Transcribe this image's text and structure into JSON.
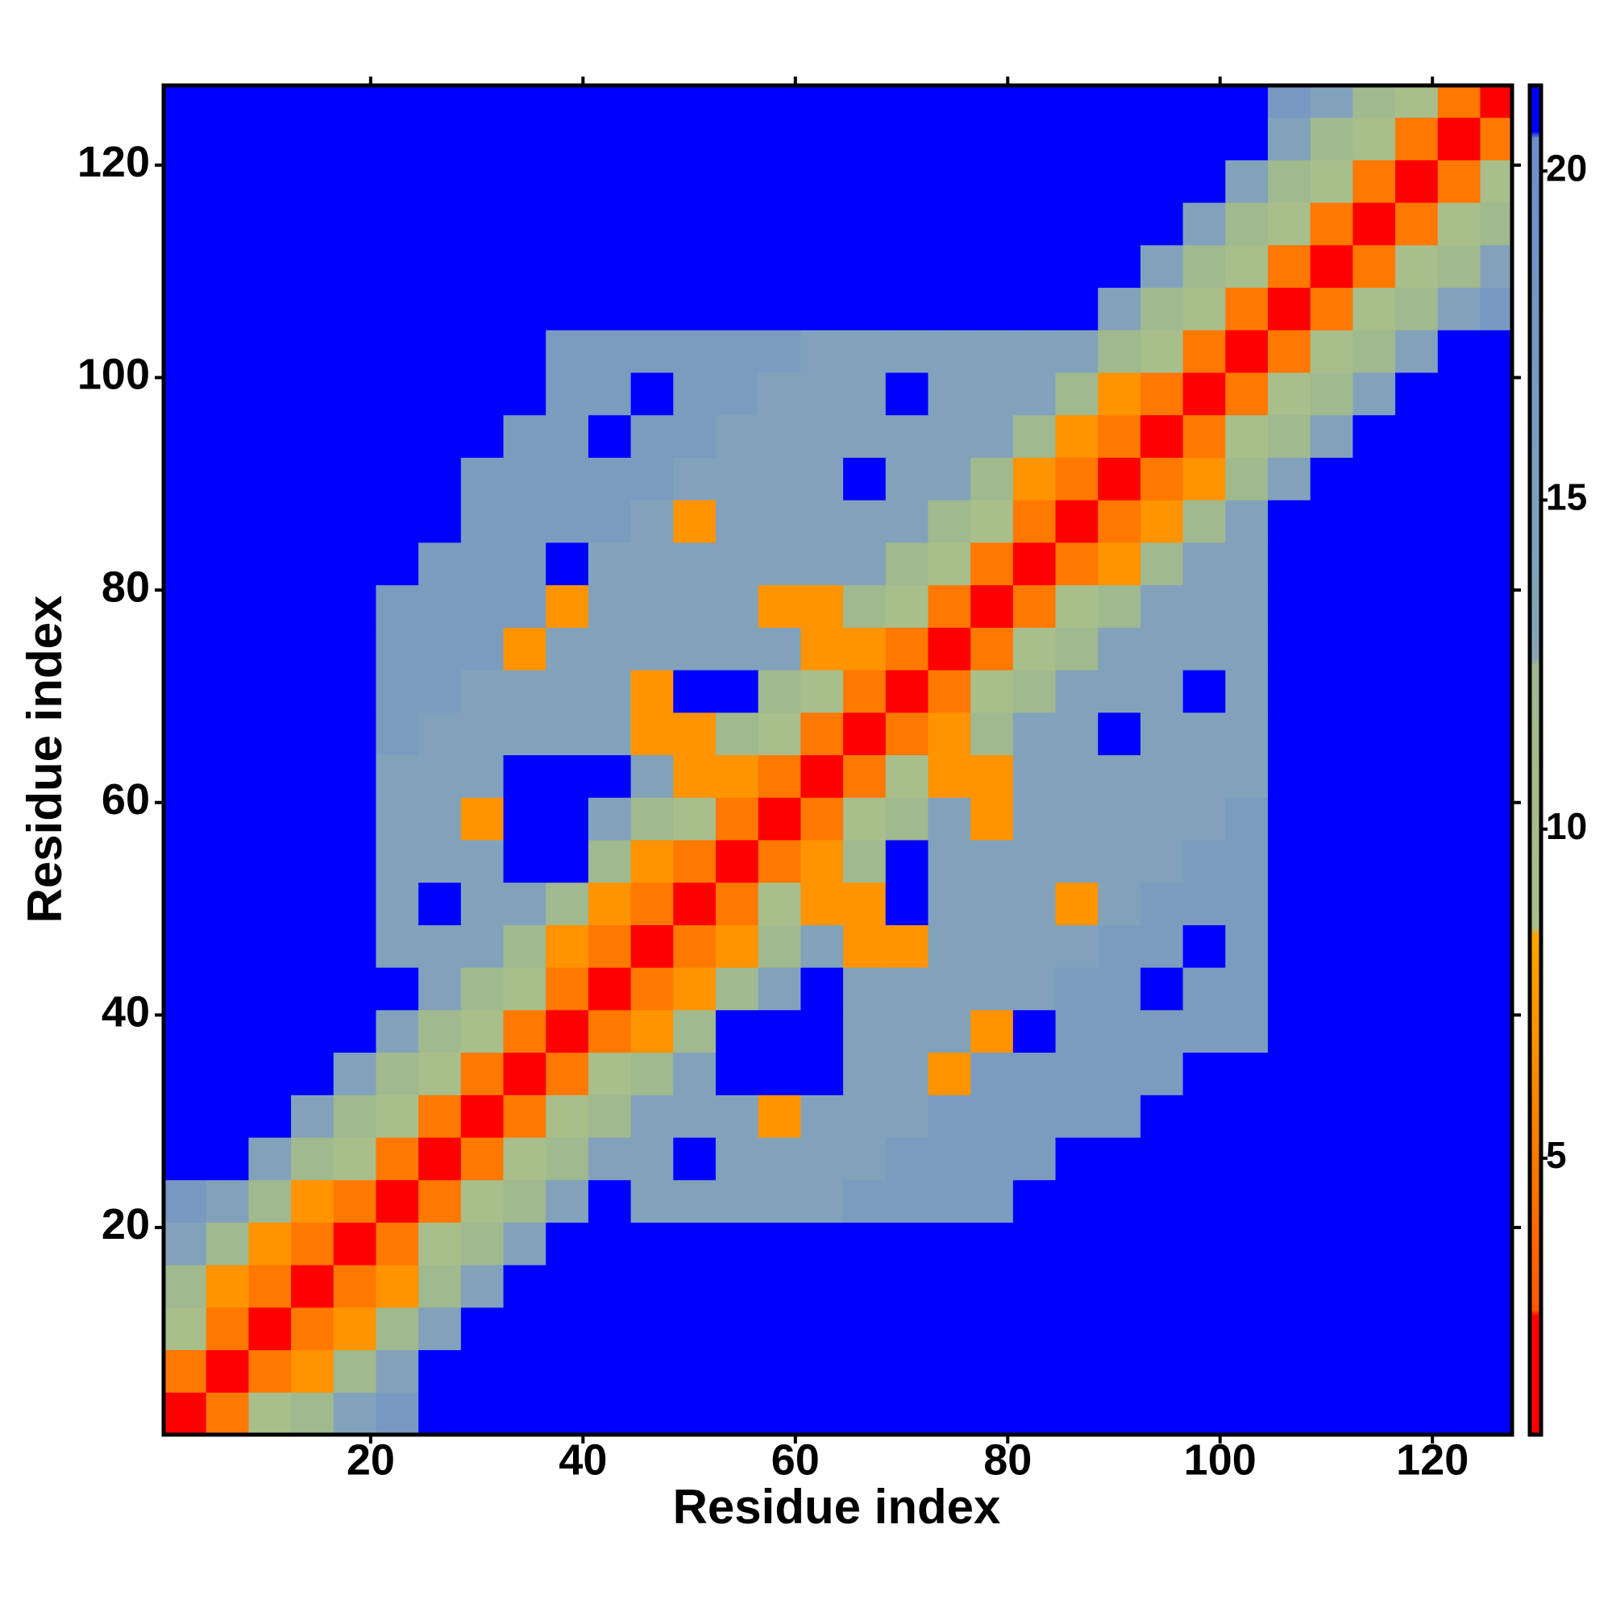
{
  "chart_data": {
    "type": "heatmap",
    "x_label": "Residue index",
    "y_label": "Residue index",
    "xlim": [
      0.5,
      127.5
    ],
    "ylim": [
      0.5,
      127.5
    ],
    "xticks": [
      20,
      40,
      60,
      80,
      100,
      120
    ],
    "yticks": [
      20,
      40,
      60,
      80,
      100,
      120
    ],
    "xbins": [
      0.5,
      4.5,
      8.5,
      12.5,
      16.5,
      20.5,
      24.5,
      28.5,
      32.5,
      36.5,
      40.5,
      44.5,
      48.5,
      52.5,
      56.5,
      60.5,
      64.5,
      68.5,
      72.5,
      76.5,
      80.5,
      84.5,
      88.5,
      92.5,
      96.5,
      100.5,
      104.5,
      108.5,
      112.5,
      116.5,
      120.5,
      124.5,
      127.5
    ],
    "ybins": [
      0.5,
      4.5,
      8.5,
      12.5,
      16.5,
      20.5,
      24.5,
      28.5,
      32.5,
      36.5,
      40.5,
      44.5,
      48.5,
      52.5,
      56.5,
      60.5,
      64.5,
      68.5,
      72.5,
      76.5,
      80.5,
      84.5,
      88.5,
      92.5,
      96.5,
      100.5,
      104.5,
      108.5,
      112.5,
      116.5,
      120.5,
      124.5,
      127.5
    ],
    "colorscale": [
      [
        0.8,
        "#ff0000"
      ],
      [
        2.6,
        "#ff0000"
      ],
      [
        2.7,
        "#ff5a00"
      ],
      [
        8.4,
        "#ffa500"
      ],
      [
        8.5,
        "#a9bf8a"
      ],
      [
        12.5,
        "#9fb88f"
      ],
      [
        12.6,
        "#86a6b8"
      ],
      [
        20.5,
        "#6d8ec9"
      ],
      [
        20.6,
        "#0000ff"
      ],
      [
        21.3,
        "#0000ff"
      ]
    ],
    "colorbar": {
      "lim": [
        0.8,
        21.3
      ],
      "ticks": [
        5,
        10,
        15,
        20
      ]
    },
    "z": [
      [
        1.5,
        5,
        9,
        12,
        14,
        17,
        25,
        25,
        25,
        25,
        25,
        25,
        25,
        25,
        25,
        25,
        25,
        25,
        25,
        25,
        25,
        25,
        25,
        25,
        25,
        25,
        25,
        25,
        25,
        25,
        25,
        25
      ],
      [
        5,
        1.5,
        5,
        7,
        12,
        14,
        25,
        25,
        25,
        25,
        25,
        25,
        25,
        25,
        25,
        25,
        25,
        25,
        25,
        25,
        25,
        25,
        25,
        25,
        25,
        25,
        25,
        25,
        25,
        25,
        25,
        25
      ],
      [
        9,
        5,
        1.5,
        5,
        7,
        12,
        14,
        25,
        25,
        25,
        25,
        25,
        25,
        25,
        25,
        25,
        25,
        25,
        25,
        25,
        25,
        25,
        25,
        25,
        25,
        25,
        25,
        25,
        25,
        25,
        25,
        25
      ],
      [
        12,
        7,
        5,
        1.5,
        5,
        7,
        12,
        14,
        25,
        25,
        25,
        25,
        25,
        25,
        25,
        25,
        25,
        25,
        25,
        25,
        25,
        25,
        25,
        25,
        25,
        25,
        25,
        25,
        25,
        25,
        25,
        25
      ],
      [
        14,
        12,
        7,
        5,
        1.5,
        5,
        9,
        12,
        14,
        25,
        25,
        25,
        25,
        25,
        25,
        25,
        25,
        25,
        25,
        25,
        25,
        25,
        25,
        25,
        25,
        25,
        25,
        25,
        25,
        25,
        25,
        25
      ],
      [
        17,
        14,
        12,
        7,
        5,
        1.5,
        5,
        9,
        12,
        14,
        25,
        14,
        14,
        14,
        14,
        14,
        16,
        16,
        16,
        16,
        25,
        25,
        25,
        25,
        25,
        25,
        25,
        25,
        25,
        25,
        25,
        25
      ],
      [
        25,
        25,
        14,
        12,
        9,
        5,
        1.5,
        5,
        9,
        12,
        14,
        14,
        25,
        14,
        14,
        14,
        14,
        16,
        16,
        16,
        16,
        25,
        25,
        25,
        25,
        25,
        25,
        25,
        25,
        25,
        25,
        25
      ],
      [
        25,
        25,
        25,
        14,
        12,
        9,
        5,
        1.5,
        5,
        9,
        12,
        14,
        14,
        14,
        7,
        14,
        14,
        14,
        16,
        16,
        16,
        16,
        16,
        25,
        25,
        25,
        25,
        25,
        25,
        25,
        25,
        25
      ],
      [
        25,
        25,
        25,
        25,
        14,
        12,
        9,
        5,
        1.5,
        5,
        9,
        12,
        14,
        25,
        25,
        25,
        14,
        14,
        7,
        16,
        16,
        16,
        16,
        16,
        25,
        25,
        25,
        25,
        25,
        25,
        25,
        25
      ],
      [
        25,
        25,
        25,
        25,
        25,
        14,
        12,
        9,
        5,
        1.5,
        5,
        7,
        12,
        25,
        25,
        25,
        14,
        14,
        14,
        7,
        25,
        16,
        16,
        16,
        16,
        16,
        25,
        25,
        25,
        25,
        25,
        25
      ],
      [
        25,
        25,
        25,
        25,
        25,
        25,
        14,
        12,
        9,
        5,
        1.5,
        5,
        7,
        12,
        14,
        25,
        14,
        14,
        14,
        14,
        14,
        16,
        16,
        25,
        16,
        16,
        25,
        25,
        25,
        25,
        25,
        25
      ],
      [
        25,
        25,
        25,
        25,
        25,
        14,
        14,
        14,
        12,
        7,
        5,
        1.5,
        5,
        7,
        12,
        14,
        7,
        7,
        14,
        14,
        14,
        14,
        16,
        16,
        25,
        16,
        25,
        25,
        25,
        25,
        25,
        25
      ],
      [
        25,
        25,
        25,
        25,
        25,
        14,
        25,
        14,
        14,
        12,
        7,
        5,
        1.5,
        5,
        9,
        7,
        7,
        25,
        14,
        14,
        14,
        7,
        14,
        16,
        16,
        16,
        25,
        25,
        25,
        25,
        25,
        25
      ],
      [
        25,
        25,
        25,
        25,
        25,
        14,
        14,
        14,
        25,
        25,
        12,
        7,
        5,
        1.5,
        5,
        7,
        12,
        25,
        14,
        14,
        14,
        14,
        14,
        14,
        16,
        16,
        25,
        25,
        25,
        25,
        25,
        25
      ],
      [
        25,
        25,
        25,
        25,
        25,
        14,
        14,
        7,
        25,
        25,
        14,
        12,
        9,
        5,
        1.5,
        5,
        9,
        12,
        14,
        7,
        14,
        14,
        14,
        14,
        14,
        16,
        25,
        25,
        25,
        25,
        25,
        25
      ],
      [
        25,
        25,
        25,
        25,
        25,
        14,
        14,
        14,
        25,
        25,
        25,
        14,
        7,
        7,
        5,
        1.5,
        5,
        9,
        7,
        7,
        14,
        14,
        14,
        14,
        14,
        14,
        25,
        25,
        25,
        25,
        25,
        25
      ],
      [
        25,
        25,
        25,
        25,
        25,
        16,
        14,
        14,
        14,
        14,
        14,
        7,
        7,
        12,
        9,
        5,
        1.5,
        5,
        7,
        12,
        14,
        14,
        25,
        14,
        14,
        14,
        25,
        25,
        25,
        25,
        25,
        25
      ],
      [
        25,
        25,
        25,
        25,
        25,
        16,
        16,
        14,
        14,
        14,
        14,
        7,
        25,
        25,
        12,
        9,
        5,
        1.5,
        5,
        9,
        12,
        14,
        14,
        14,
        25,
        14,
        25,
        25,
        25,
        25,
        25,
        25
      ],
      [
        25,
        25,
        25,
        25,
        25,
        16,
        16,
        16,
        7,
        14,
        14,
        14,
        14,
        14,
        14,
        7,
        7,
        5,
        1.5,
        5,
        9,
        12,
        14,
        14,
        14,
        14,
        25,
        25,
        25,
        25,
        25,
        25
      ],
      [
        25,
        25,
        25,
        25,
        25,
        16,
        16,
        16,
        16,
        7,
        14,
        14,
        14,
        14,
        7,
        7,
        12,
        9,
        5,
        1.5,
        5,
        9,
        12,
        14,
        14,
        14,
        25,
        25,
        25,
        25,
        25,
        25
      ],
      [
        25,
        25,
        25,
        25,
        25,
        25,
        16,
        16,
        16,
        25,
        14,
        14,
        14,
        14,
        14,
        14,
        14,
        12,
        9,
        5,
        1.5,
        5,
        7,
        12,
        14,
        14,
        25,
        25,
        25,
        25,
        25,
        25
      ],
      [
        25,
        25,
        25,
        25,
        25,
        25,
        25,
        16,
        16,
        16,
        16,
        14,
        7,
        14,
        14,
        14,
        14,
        14,
        12,
        9,
        5,
        1.5,
        5,
        7,
        12,
        14,
        25,
        25,
        25,
        25,
        25,
        25
      ],
      [
        25,
        25,
        25,
        25,
        25,
        25,
        25,
        16,
        16,
        16,
        16,
        16,
        14,
        14,
        14,
        14,
        25,
        14,
        14,
        12,
        7,
        5,
        1.5,
        5,
        7,
        12,
        14,
        25,
        25,
        25,
        25,
        25
      ],
      [
        25,
        25,
        25,
        25,
        25,
        25,
        25,
        25,
        16,
        16,
        25,
        16,
        16,
        14,
        14,
        14,
        14,
        14,
        14,
        14,
        12,
        7,
        5,
        1.5,
        5,
        9,
        12,
        14,
        25,
        25,
        25,
        25
      ],
      [
        25,
        25,
        25,
        25,
        25,
        25,
        25,
        25,
        25,
        16,
        16,
        25,
        16,
        16,
        14,
        14,
        14,
        25,
        14,
        14,
        14,
        12,
        7,
        5,
        1.5,
        5,
        9,
        12,
        14,
        25,
        25,
        25
      ],
      [
        25,
        25,
        25,
        25,
        25,
        25,
        25,
        25,
        25,
        16,
        16,
        16,
        16,
        16,
        16,
        14,
        14,
        14,
        14,
        14,
        14,
        14,
        12,
        9,
        5,
        1.5,
        5,
        9,
        12,
        14,
        25,
        25
      ],
      [
        25,
        25,
        25,
        25,
        25,
        25,
        25,
        25,
        25,
        25,
        25,
        25,
        25,
        25,
        25,
        25,
        25,
        25,
        25,
        25,
        25,
        25,
        14,
        12,
        9,
        5,
        1.5,
        5,
        9,
        12,
        14,
        17
      ],
      [
        25,
        25,
        25,
        25,
        25,
        25,
        25,
        25,
        25,
        25,
        25,
        25,
        25,
        25,
        25,
        25,
        25,
        25,
        25,
        25,
        25,
        25,
        25,
        14,
        12,
        9,
        5,
        1.5,
        5,
        9,
        12,
        14
      ],
      [
        25,
        25,
        25,
        25,
        25,
        25,
        25,
        25,
        25,
        25,
        25,
        25,
        25,
        25,
        25,
        25,
        25,
        25,
        25,
        25,
        25,
        25,
        25,
        25,
        14,
        12,
        9,
        5,
        1.5,
        5,
        9,
        12
      ],
      [
        25,
        25,
        25,
        25,
        25,
        25,
        25,
        25,
        25,
        25,
        25,
        25,
        25,
        25,
        25,
        25,
        25,
        25,
        25,
        25,
        25,
        25,
        25,
        25,
        25,
        14,
        12,
        9,
        5,
        1.5,
        5,
        9
      ],
      [
        25,
        25,
        25,
        25,
        25,
        25,
        25,
        25,
        25,
        25,
        25,
        25,
        25,
        25,
        25,
        25,
        25,
        25,
        25,
        25,
        25,
        25,
        25,
        25,
        25,
        25,
        14,
        12,
        9,
        5,
        1.5,
        5
      ],
      [
        25,
        25,
        25,
        25,
        25,
        25,
        25,
        25,
        25,
        25,
        25,
        25,
        25,
        25,
        25,
        25,
        25,
        25,
        25,
        25,
        25,
        25,
        25,
        25,
        25,
        25,
        17,
        14,
        12,
        9,
        5,
        1.5
      ]
    ]
  }
}
